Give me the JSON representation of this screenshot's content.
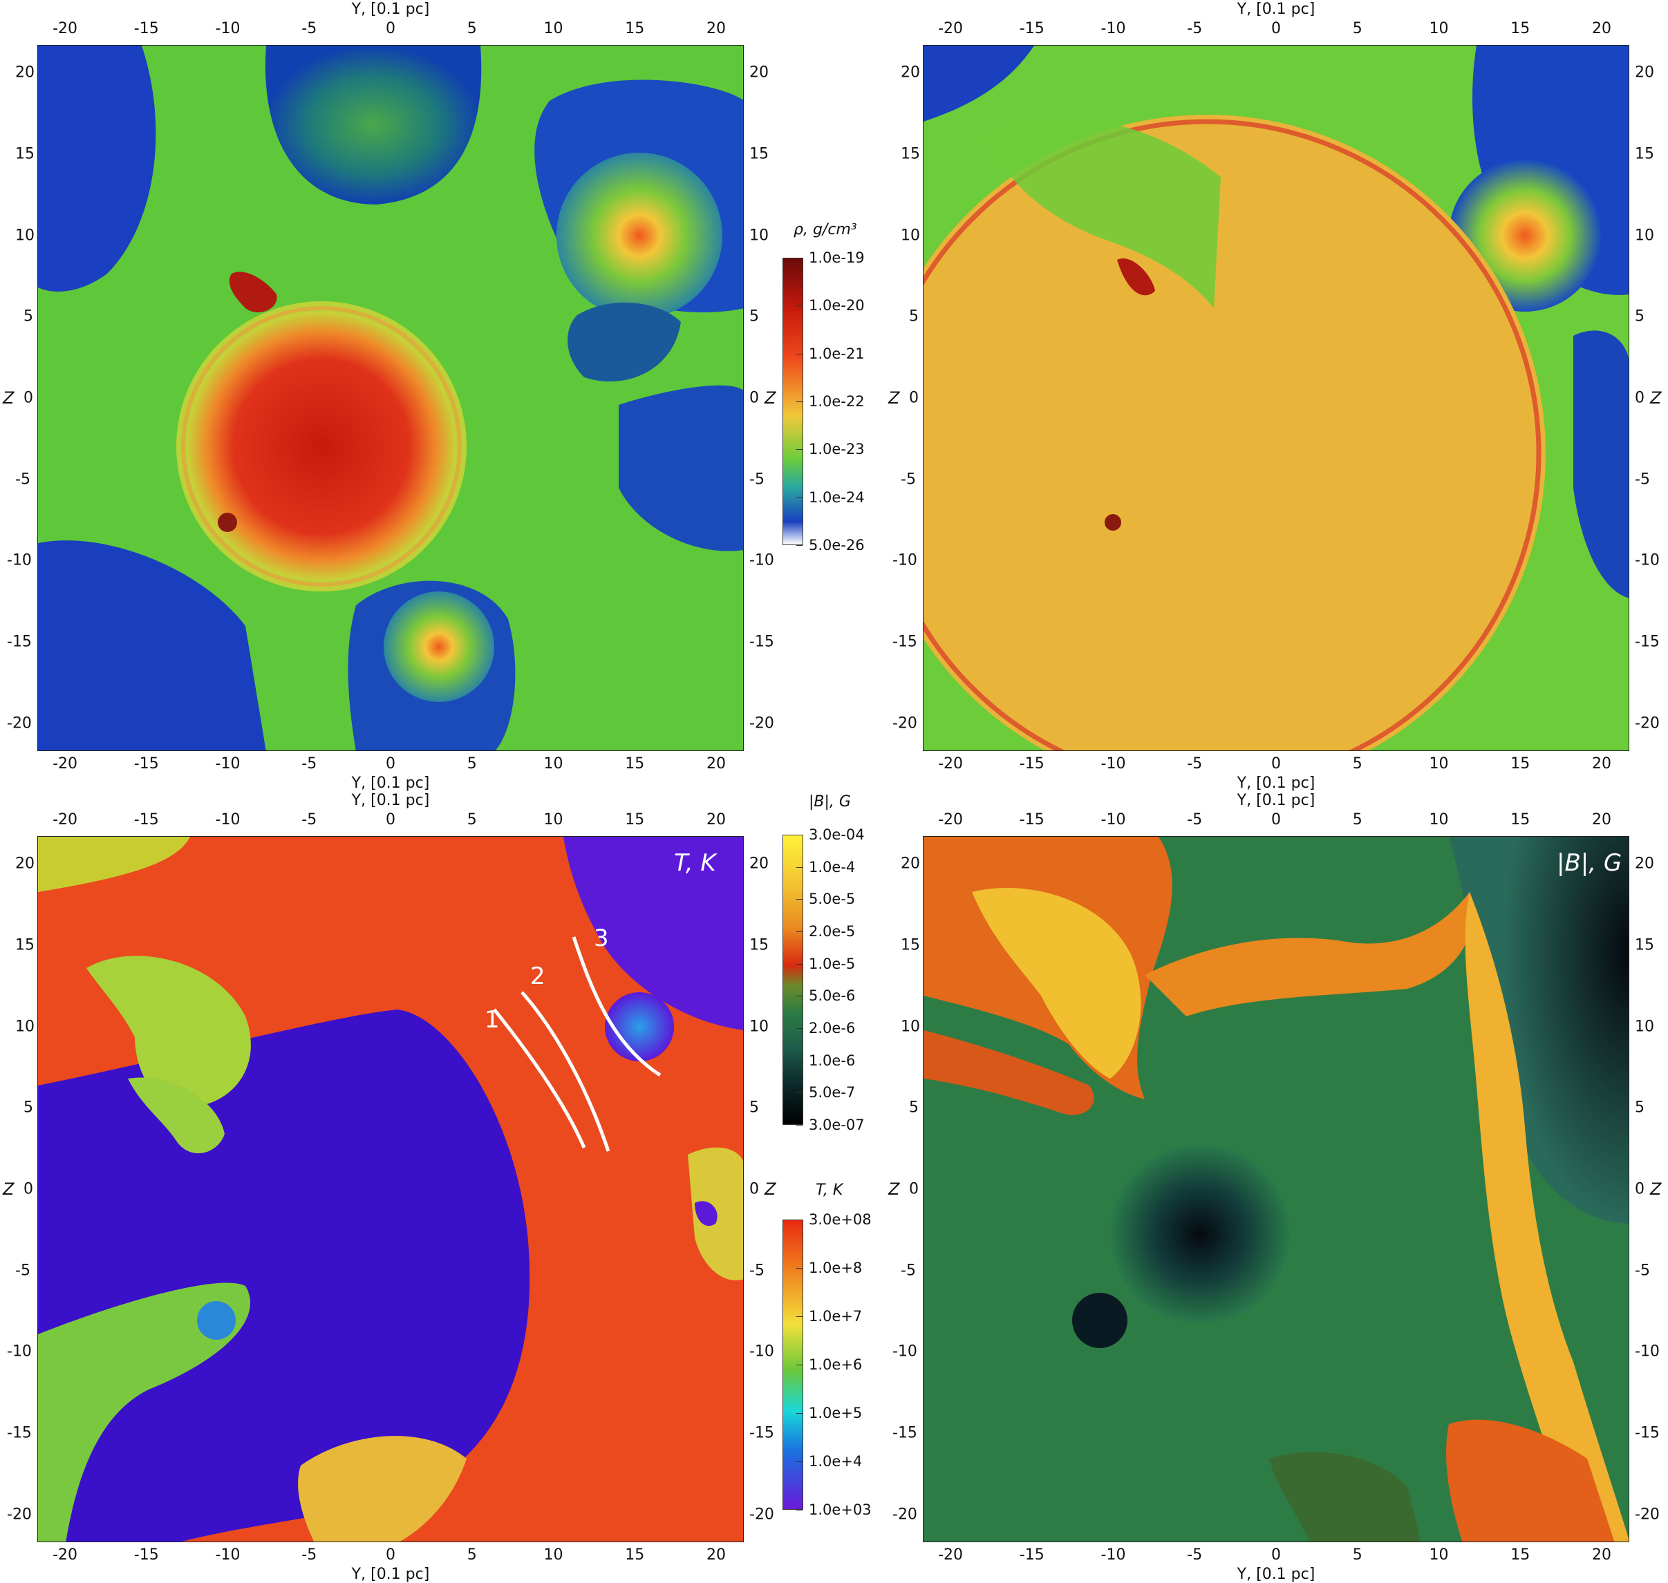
{
  "axis": {
    "y_label": "Y, [0.1 pc]",
    "z_label": "Z",
    "x_ticks": [
      "-20",
      "-15",
      "-10",
      "-5",
      "0",
      "5",
      "10",
      "15",
      "20"
    ],
    "y_ticks": [
      "20",
      "15",
      "10",
      "5",
      "0",
      "-5",
      "-10",
      "-15",
      "-20"
    ]
  },
  "colorbars": {
    "density": {
      "title": "ρ, g/cm³",
      "labels": [
        "1.0e-19",
        "1.0e-20",
        "1.0e-21",
        "1.0e-22",
        "1.0e-23",
        "1.0e-24",
        "5.0e-26"
      ]
    },
    "bfield": {
      "title": "|B|, G",
      "labels": [
        "3.0e-04",
        "1.0e-4",
        "5.0e-5",
        "2.0e-5",
        "1.0e-5",
        "5.0e-6",
        "2.0e-6",
        "1.0e-6",
        "5.0e-7",
        "3.0e-07"
      ]
    },
    "temperature": {
      "title": "T, K",
      "labels": [
        "3.0e+08",
        "1.0e+8",
        "1.0e+7",
        "1.0e+6",
        "1.0e+5",
        "1.0e+4",
        "1.0e+03"
      ]
    }
  },
  "panels": {
    "temperature_label": "T, K",
    "bfield_label": "|B|, G",
    "shock_numbers": [
      "1",
      "2",
      "3"
    ]
  }
}
